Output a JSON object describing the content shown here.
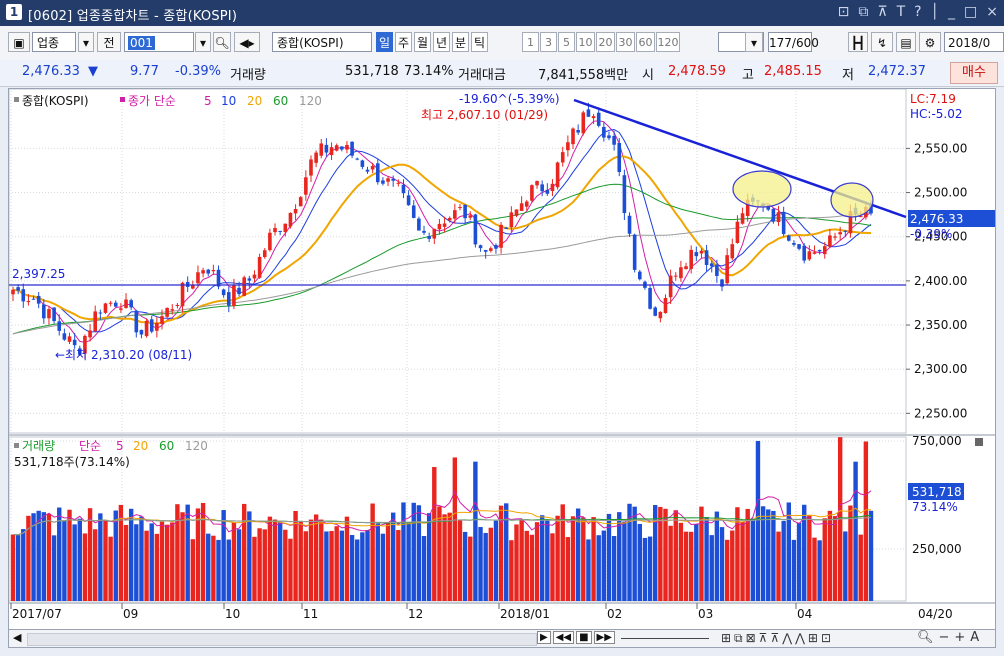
{
  "window": {
    "number": "1",
    "title": "[0602] 업종종합차트 - 종합(KOSPI)",
    "buttons": [
      "⊡",
      "⧉",
      "⊼",
      "T",
      "?",
      "│",
      "_",
      "□",
      "×"
    ]
  },
  "toolbar": {
    "category_label": "업종",
    "prev_label": "전",
    "code_value": "001",
    "index_name": "종합(KOSPI)",
    "periods": [
      "일",
      "주",
      "월",
      "년",
      "분",
      "틱"
    ],
    "active_period": "일",
    "intervals": [
      "1",
      "3",
      "5",
      "10",
      "20",
      "30",
      "60",
      "120"
    ],
    "page_count": "177/600",
    "date_value": "2018/0"
  },
  "quote": {
    "price": "2,476.33",
    "change_arrow": "▼",
    "change": "9.77",
    "change_pct": "-0.39%",
    "volume_label": "거래량",
    "volume": "531,718",
    "volume_pct": "73.14%",
    "value_label": "거래대금",
    "value": "7,841,558백만",
    "open_label": "시",
    "open": "2,478.59",
    "high_label": "고",
    "high": "2,485.15",
    "low_label": "저",
    "low": "2,472.37",
    "buy_button": "매수"
  },
  "price_panel": {
    "legend_name": "종합(KOSPI)",
    "ma_label": "종가 단순",
    "ma_periods": [
      "5",
      "10",
      "20",
      "60",
      "120"
    ],
    "ma_colors": [
      "#d21fa8",
      "#1c3ee0",
      "#f0a500",
      "#1b9a2c",
      "#9b9b9b"
    ],
    "trend_annotation": "-19.60^(-5.39%)",
    "high_annotation": "최고 2,607.10 (01/29)",
    "low_annotation": "←최저 2,310.20 (08/11)",
    "support_label": "2,397.25",
    "lc_label": "LC:7.19",
    "hc_label": "HC:-5.02",
    "y_ticks": [
      "2,550.00",
      "2,500.00",
      "2,450.00",
      "2,400.00",
      "2,350.00",
      "2,300.00",
      "2,250.00"
    ],
    "price_tag": "2,476.33",
    "pct_tag": "-0.39%"
  },
  "volume_panel": {
    "legend_name": "거래량",
    "ma_label": "단순",
    "ma_periods": [
      "5",
      "20",
      "60",
      "120"
    ],
    "current": "531,718주(73.14%)",
    "y_ticks": [
      "750,000",
      "250,000"
    ],
    "tag_value": "531,718",
    "tag_pct": "73.14%"
  },
  "x_axis": [
    "2017/07",
    "09",
    "10",
    "11",
    "12",
    "2018/01",
    "02",
    "03",
    "04"
  ],
  "x_end_label": "04/20",
  "colors": {
    "up": "#e8251f",
    "down": "#1d4fd6",
    "title_bar": "#243c6a",
    "trend_line": "#1a22d8"
  },
  "chart_data": {
    "type": "candlestick",
    "series": [
      {
        "name": "종합(KOSPI)",
        "close_approx": [
          2390,
          2380,
          2350,
          2320,
          2370,
          2380,
          2340,
          2360,
          2390,
          2420,
          2380,
          2400,
          2450,
          2480,
          2540,
          2555,
          2540,
          2520,
          2500,
          2450,
          2470,
          2480,
          2430,
          2460,
          2500,
          2510,
          2560,
          2600,
          2550,
          2420,
          2360,
          2420,
          2440,
          2400,
          2480,
          2490,
          2460,
          2430,
          2440,
          2470,
          2476.33
        ]
      }
    ],
    "ylim": [
      2230,
      2615
    ],
    "high": 2607.1,
    "low": 2310.2,
    "support": 2397.25,
    "last": 2476.33
  }
}
